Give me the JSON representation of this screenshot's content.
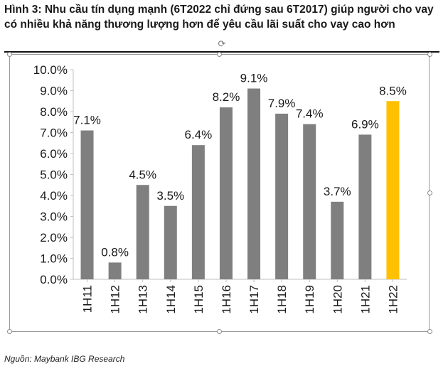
{
  "title": "Hình 3: Nhu cầu tín dụng mạnh (6T2022 chỉ đứng sau 6T2017) giúp người cho vay có nhiều khả năng thương lượng hơn để yêu cầu lãi suất cho vay cao hơn",
  "source": "Nguồn: Maybank IBG Research",
  "colors": {
    "bar": "#7f7f7f",
    "highlight": "#ffc000",
    "axis": "#bfbfbf"
  },
  "icons": {
    "rotate": "rotate-icon"
  },
  "chart_data": {
    "type": "bar",
    "title": "",
    "xlabel": "",
    "ylabel": "",
    "categories": [
      "1H11",
      "1H12",
      "1H13",
      "1H14",
      "1H15",
      "1H16",
      "1H17",
      "1H18",
      "1H19",
      "1H20",
      "1H21",
      "1H22"
    ],
    "values": [
      7.1,
      0.8,
      4.5,
      3.5,
      6.4,
      8.2,
      9.1,
      7.9,
      7.4,
      3.7,
      6.9,
      8.5
    ],
    "data_labels": [
      "7.1%",
      "0.8%",
      "4.5%",
      "3.5%",
      "6.4%",
      "8.2%",
      "9.1%",
      "7.9%",
      "7.4%",
      "3.7%",
      "6.9%",
      "8.5%"
    ],
    "highlight_index": 11,
    "ylim": [
      0,
      10
    ],
    "yticks": [
      0,
      1,
      2,
      3,
      4,
      5,
      6,
      7,
      8,
      9,
      10
    ],
    "ytick_labels": [
      "0.0%",
      "1.0%",
      "2.0%",
      "3.0%",
      "4.0%",
      "5.0%",
      "6.0%",
      "7.0%",
      "8.0%",
      "9.0%",
      "10.0%"
    ],
    "grid": false,
    "legend": "none"
  }
}
